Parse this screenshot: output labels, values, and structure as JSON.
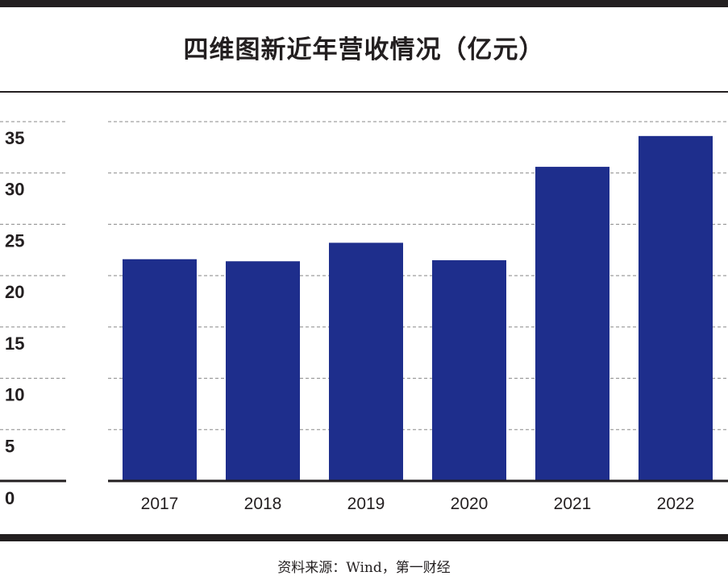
{
  "title": "四维图新近年营收情况（亿元）",
  "source": "资料来源：Wind，第一财经",
  "colors": {
    "bar": "#1e2e8c",
    "grid": "#888888",
    "axis": "#231f20"
  },
  "chart_data": {
    "type": "bar",
    "title": "四维图新近年营收情况（亿元）",
    "xlabel": "",
    "ylabel": "",
    "categories": [
      "2017",
      "2018",
      "2019",
      "2020",
      "2021",
      "2022"
    ],
    "values": [
      21.6,
      21.4,
      23.2,
      21.5,
      30.6,
      33.6
    ],
    "ylim": [
      0,
      35
    ],
    "yticks": [
      "0",
      "5",
      "10",
      "15",
      "20",
      "25",
      "30",
      "35"
    ],
    "grid": "horizontal dashed",
    "legend": "none"
  }
}
